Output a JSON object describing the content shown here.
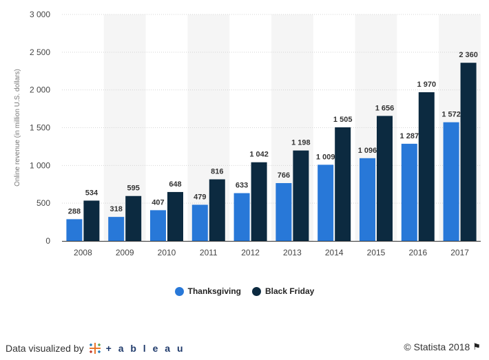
{
  "chart_data": {
    "type": "bar",
    "categories": [
      "2008",
      "2009",
      "2010",
      "2011",
      "2012",
      "2013",
      "2014",
      "2015",
      "2016",
      "2017"
    ],
    "series": [
      {
        "name": "Thanksgiving",
        "color": "#2878d8",
        "values": [
          288,
          318,
          407,
          479,
          633,
          766,
          1009,
          1096,
          1287,
          1572
        ],
        "labels": [
          "288",
          "318",
          "407",
          "479",
          "633",
          "766",
          "1 009",
          "1 096",
          "1 287",
          "1 572"
        ]
      },
      {
        "name": "Black Friday",
        "color": "#0c2a40",
        "values": [
          534,
          595,
          648,
          816,
          1042,
          1198,
          1505,
          1656,
          1970,
          2360
        ],
        "labels": [
          "534",
          "595",
          "648",
          "816",
          "1 042",
          "1 198",
          "1 505",
          "1 656",
          "1 970",
          "2 360"
        ]
      }
    ],
    "ylabel": "Online revenue (in million U.S. dollars)",
    "ylim": [
      0,
      3000
    ],
    "yticks": [
      0,
      500,
      1000,
      1500,
      2000,
      2500,
      3000
    ],
    "ytick_labels": [
      "0",
      "500",
      "1 000",
      "1 500",
      "2 000",
      "2 500",
      "3 000"
    ],
    "grid": true,
    "legend_position": "bottom"
  },
  "footer": {
    "visualized_by": "Data visualized by",
    "tableau_word": "+ a b l e a u",
    "copyright": "© Statista 2018"
  }
}
